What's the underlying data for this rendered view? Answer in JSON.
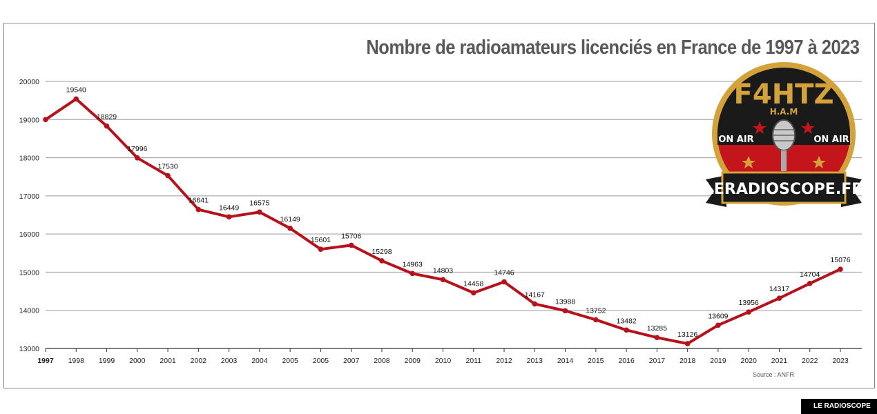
{
  "chart_data": {
    "type": "line",
    "title": "Nombre de radioamateurs licenciés en France de 1997 à 2023",
    "xlabel": "",
    "ylabel": "",
    "categories": [
      "1997",
      "1998",
      "1999",
      "2000",
      "2001",
      "2002",
      "2003",
      "2004",
      "2005",
      "2005",
      "2007",
      "2008",
      "2009",
      "2010",
      "2011",
      "2012",
      "2013",
      "2014",
      "2015",
      "2016",
      "2017",
      "2018",
      "2019",
      "2020",
      "2021",
      "2022",
      "2023"
    ],
    "values": [
      19000,
      19540,
      18829,
      17996,
      17530,
      16641,
      16449,
      16575,
      16149,
      15601,
      15706,
      15298,
      14963,
      14803,
      14458,
      14746,
      14167,
      13988,
      13752,
      13482,
      13285,
      13126,
      13609,
      13956,
      14317,
      14704,
      15076
    ],
    "data_labels": [
      "",
      "19540",
      "18829",
      "17996",
      "17530",
      "16641",
      "16449",
      "16575",
      "16149",
      "15601",
      "15706",
      "15298",
      "14963",
      "14803",
      "14458",
      "14746",
      "14167",
      "13988",
      "13752",
      "13482",
      "13285",
      "13126",
      "13609",
      "13956",
      "14317",
      "14704",
      "15076"
    ],
    "yticks": [
      13000,
      14000,
      15000,
      16000,
      17000,
      18000,
      19000,
      20000
    ],
    "ylim": [
      13000,
      20000
    ],
    "grid": true,
    "line_color": "#b5121b"
  },
  "source": "Source : ANFR",
  "logo": {
    "callsign": "F4HTZ",
    "sub": "H.A.M",
    "on_air_left": "ON AIR",
    "on_air_right": "ON AIR",
    "banner": "LERADIOSCOPE.FR"
  },
  "brand": "LE RADIOSCOPE"
}
